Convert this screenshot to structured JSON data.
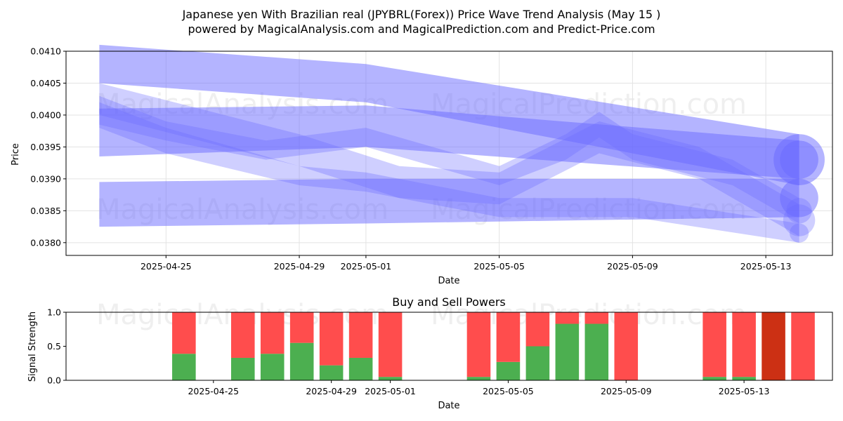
{
  "header": {
    "title_line1": "Japanese yen With Brazilian real (JPYBRL(Forex)) Price Wave Trend Analysis (May 15 )",
    "title_line2": "powered by MagicalAnalysis.com and MagicalPrediction.com and Predict-Price.com"
  },
  "watermarks": [
    "MagicalAnalysis.com",
    "MagicalPrediction.com"
  ],
  "colors": {
    "band": "#6a6aff",
    "buy": "#4caf50",
    "sell": "#ff4d4d",
    "sell_strong": "#cc3014"
  },
  "chart_data": [
    {
      "type": "area",
      "title": "",
      "xlabel": "Date",
      "ylabel": "Price",
      "xlim": [
        "2025-04-22",
        "2025-05-15"
      ],
      "ylim": [
        0.0378,
        0.041
      ],
      "yticks": [
        0.038,
        0.0385,
        0.039,
        0.0395,
        0.04,
        0.0405,
        0.041
      ],
      "ytick_labels": [
        "0.0380",
        "0.0385",
        "0.0390",
        "0.0395",
        "0.0400",
        "0.0405",
        "0.0410"
      ],
      "xticks": [
        "2025-04-25",
        "2025-04-29",
        "2025-05-01",
        "2025-05-05",
        "2025-05-09",
        "2025-05-13"
      ],
      "grid": true,
      "bands": [
        {
          "x": [
            "2025-04-23",
            "2025-05-01",
            "2025-05-14"
          ],
          "upper": [
            0.0411,
            0.0408,
            0.0397
          ],
          "lower": [
            0.0405,
            0.0402,
            0.0389
          ]
        },
        {
          "x": [
            "2025-04-23",
            "2025-05-01",
            "2025-05-14"
          ],
          "upper": [
            0.0401,
            0.04015,
            0.0396
          ],
          "lower": [
            0.03935,
            0.0395,
            0.039
          ]
        },
        {
          "x": [
            "2025-04-23",
            "2025-05-01",
            "2025-05-14"
          ],
          "upper": [
            0.03895,
            0.039,
            0.039
          ],
          "lower": [
            0.03825,
            0.0383,
            0.0384
          ]
        },
        {
          "x": [
            "2025-04-23",
            "2025-04-25",
            "2025-04-28",
            "2025-05-01",
            "2025-05-05",
            "2025-05-07",
            "2025-05-08",
            "2025-05-09",
            "2025-05-12",
            "2025-05-14"
          ],
          "upper": [
            0.0403,
            0.0399,
            0.0396,
            0.0398,
            0.0392,
            0.0397,
            0.04005,
            0.0397,
            0.0393,
            0.0387
          ],
          "lower": [
            0.03985,
            0.0396,
            0.0393,
            0.0395,
            0.0389,
            0.0393,
            0.03965,
            0.0393,
            0.0389,
            0.0383
          ]
        },
        {
          "x": [
            "2025-04-23",
            "2025-04-25",
            "2025-04-29",
            "2025-05-01",
            "2025-05-05",
            "2025-05-09",
            "2025-05-14"
          ],
          "upper": [
            0.0402,
            0.0398,
            0.0392,
            0.0391,
            0.0387,
            0.0387,
            0.0383
          ],
          "lower": [
            0.0398,
            0.0394,
            0.0389,
            0.0388,
            0.0384,
            0.0384,
            0.038
          ]
        },
        {
          "x": [
            "2025-04-23",
            "2025-04-26",
            "2025-04-29",
            "2025-05-02",
            "2025-05-05",
            "2025-05-08",
            "2025-05-11",
            "2025-05-14"
          ],
          "upper": [
            0.0405,
            0.0401,
            0.0397,
            0.0392,
            0.0391,
            0.0399,
            0.0395,
            0.0386
          ],
          "lower": [
            0.04,
            0.0396,
            0.0392,
            0.0387,
            0.0386,
            0.0394,
            0.039,
            0.0381
          ]
        }
      ]
    },
    {
      "type": "bar",
      "title": "Buy and Sell Powers",
      "xlabel": "Date",
      "ylabel": "Signal Strength",
      "ylim": [
        0,
        1
      ],
      "yticks": [
        0,
        0.5,
        1
      ],
      "ytick_labels": [
        "0.0",
        "0.5",
        "1.0"
      ],
      "xticks": [
        "2025-04-25",
        "2025-04-29",
        "2025-05-01",
        "2025-05-05",
        "2025-05-09",
        "2025-05-13"
      ],
      "categories": [
        "2025-04-24",
        "2025-04-26",
        "2025-04-27",
        "2025-04-28",
        "2025-04-29",
        "2025-04-30",
        "2025-05-01",
        "2025-05-04",
        "2025-05-05",
        "2025-05-06",
        "2025-05-07",
        "2025-05-08",
        "2025-05-09",
        "2025-05-12",
        "2025-05-13",
        "2025-05-14",
        "2025-05-15"
      ],
      "series": [
        {
          "values": [
            0.39,
            0.33,
            0.39,
            0.55,
            0.22,
            0.33,
            0.05,
            0.05,
            0.27,
            0.5,
            0.83,
            0.83,
            0.0,
            0.05,
            0.05,
            0.0,
            0.0
          ]
        },
        {
          "values": [
            0.61,
            0.67,
            0.61,
            0.45,
            0.78,
            0.67,
            0.95,
            0.95,
            0.73,
            0.5,
            0.17,
            0.17,
            1.0,
            0.95,
            0.95,
            1.0,
            1.0
          ]
        }
      ],
      "strong_sell_categories": [
        "2025-05-14"
      ]
    }
  ]
}
